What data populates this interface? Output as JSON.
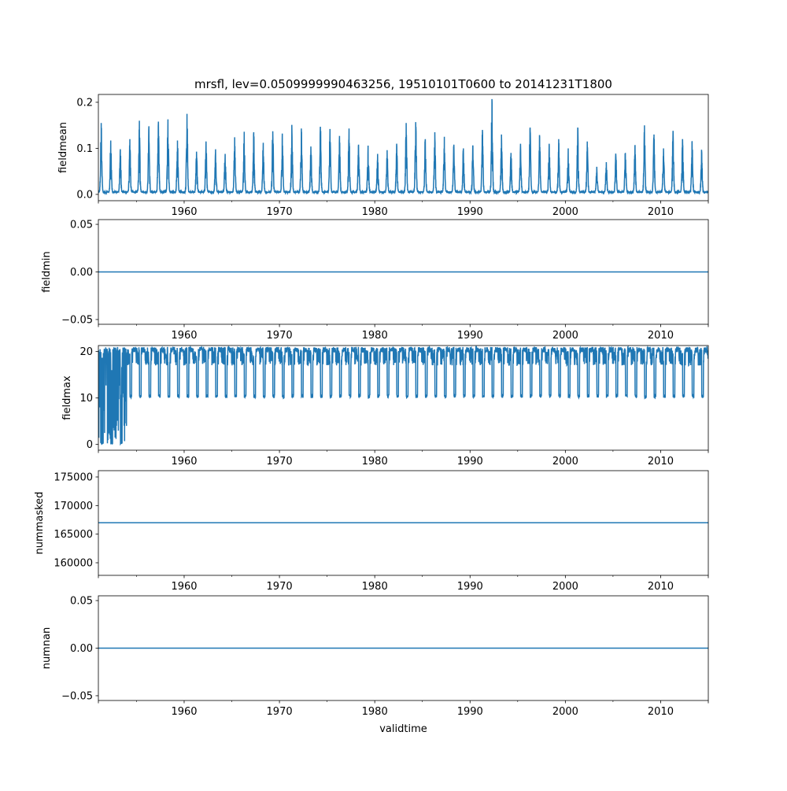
{
  "chart_data": [
    {
      "type": "line",
      "title": "mrsfl, lev=0.0509999990463256, 19510101T0600 to 20141231T1800",
      "ylabel": "fieldmean",
      "xlim": [
        1951,
        2015
      ],
      "ylim": [
        -0.0137,
        0.217
      ],
      "yticks": [
        0.0,
        0.1,
        0.2
      ],
      "ytick_labels": [
        "0.0",
        "0.1",
        "0.2"
      ],
      "xticks": [
        1960,
        1970,
        1980,
        1990,
        2000,
        2010
      ],
      "xtick_labels": [
        "1960",
        "1970",
        "1980",
        "1990",
        "2000",
        "2010"
      ],
      "color": "#1f77b4",
      "baseline": 0.003,
      "annual_years_start": 1951,
      "annual_peaks": [
        0.155,
        0.117,
        0.098,
        0.12,
        0.16,
        0.148,
        0.158,
        0.163,
        0.117,
        0.175,
        0.093,
        0.115,
        0.098,
        0.088,
        0.124,
        0.136,
        0.135,
        0.112,
        0.137,
        0.132,
        0.151,
        0.143,
        0.104,
        0.147,
        0.142,
        0.127,
        0.143,
        0.108,
        0.106,
        0.088,
        0.096,
        0.11,
        0.155,
        0.157,
        0.12,
        0.135,
        0.125,
        0.108,
        0.1,
        0.105,
        0.14,
        0.207,
        0.13,
        0.09,
        0.11,
        0.145,
        0.125,
        0.11,
        0.12,
        0.1,
        0.145,
        0.115,
        0.06,
        0.07,
        0.085,
        0.09,
        0.105,
        0.15,
        0.13,
        0.1,
        0.138,
        0.12,
        0.115,
        0.095
      ]
    },
    {
      "type": "line",
      "ylabel": "fieldmin",
      "xlim": [
        1951,
        2015
      ],
      "ylim": [
        -0.055,
        0.055
      ],
      "yticks": [
        -0.05,
        0.0,
        0.05
      ],
      "ytick_labels": [
        "−0.05",
        "0.00",
        "0.05"
      ],
      "xticks": [
        1960,
        1970,
        1980,
        1990,
        2000,
        2010
      ],
      "xtick_labels": [
        "1960",
        "1970",
        "1980",
        "1990",
        "2000",
        "2010"
      ],
      "color": "#1f77b4",
      "constant_value": 0.0
    },
    {
      "type": "line",
      "ylabel": "fieldmax",
      "xlim": [
        1951,
        2015
      ],
      "ylim": [
        -1.24,
        21.3
      ],
      "yticks": [
        0,
        10,
        20
      ],
      "ytick_labels": [
        "0",
        "10",
        "20"
      ],
      "xticks": [
        1960,
        1970,
        1980,
        1990,
        2000,
        2010
      ],
      "xtick_labels": [
        "1960",
        "1970",
        "1980",
        "1990",
        "2000",
        "2010"
      ],
      "color": "#1f77b4",
      "high_value": 21,
      "typical_low": 10,
      "early_low_years": [
        1951,
        1952,
        1953
      ],
      "early_low_value": 0
    },
    {
      "type": "line",
      "ylabel": "nummasked",
      "xlim": [
        1951,
        2015
      ],
      "ylim": [
        157800,
        176100
      ],
      "yticks": [
        160000,
        165000,
        170000,
        175000
      ],
      "ytick_labels": [
        "160000",
        "165000",
        "170000",
        "175000"
      ],
      "xticks": [
        1960,
        1970,
        1980,
        1990,
        2000,
        2010
      ],
      "xtick_labels": [
        "1960",
        "1970",
        "1980",
        "1990",
        "2000",
        "2010"
      ],
      "color": "#1f77b4",
      "constant_value": 167000
    },
    {
      "type": "line",
      "ylabel": "numnan",
      "xlabel": "validtime",
      "xlim": [
        1951,
        2015
      ],
      "ylim": [
        -0.055,
        0.055
      ],
      "yticks": [
        -0.05,
        0.0,
        0.05
      ],
      "ytick_labels": [
        "−0.05",
        "0.00",
        "0.05"
      ],
      "xticks": [
        1960,
        1970,
        1980,
        1990,
        2000,
        2010
      ],
      "xtick_labels": [
        "1960",
        "1970",
        "1980",
        "1990",
        "2000",
        "2010"
      ],
      "color": "#1f77b4",
      "constant_value": 0.0
    }
  ]
}
